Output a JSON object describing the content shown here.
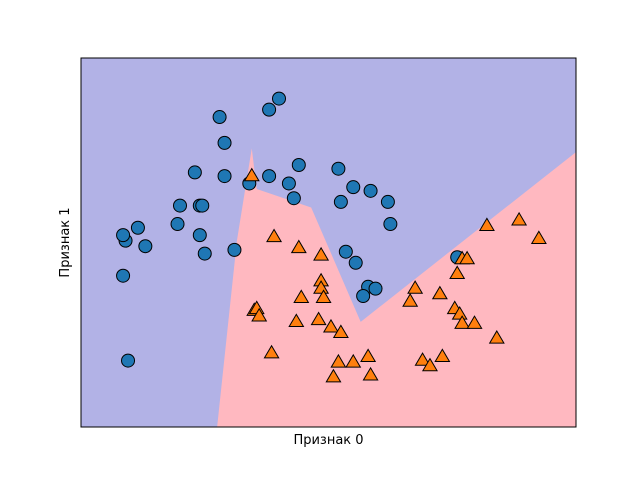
{
  "chart_data": {
    "type": "scatter",
    "xlabel": "Признак 0",
    "ylabel": "Признак 1",
    "xlim": [
      0,
      100
    ],
    "ylim": [
      0,
      100
    ],
    "xticks_visible": false,
    "yticks_visible": false,
    "grid": false,
    "regions": [
      {
        "class": 0,
        "color": "#b2b2e6",
        "fill": "background"
      },
      {
        "class": 1,
        "color": "#ffb8c0",
        "polygon": [
          [
            27.5,
            0
          ],
          [
            31.5,
            50.5
          ],
          [
            34.5,
            75.5
          ],
          [
            35.5,
            64.5
          ],
          [
            46.5,
            59.5
          ],
          [
            56.5,
            28.5
          ],
          [
            100,
            74.5
          ],
          [
            100,
            0
          ]
        ]
      }
    ],
    "series": [
      {
        "class": 0,
        "marker": "circle",
        "color": "#1f77b4",
        "edgecolor": "#000000",
        "points": [
          [
            28,
            84
          ],
          [
            38,
            86
          ],
          [
            40,
            89
          ],
          [
            29,
            77
          ],
          [
            23,
            69
          ],
          [
            29,
            68
          ],
          [
            38,
            68
          ],
          [
            34,
            66
          ],
          [
            44,
            71
          ],
          [
            42,
            66
          ],
          [
            43,
            62
          ],
          [
            52,
            70
          ],
          [
            52.5,
            61
          ],
          [
            55,
            65
          ],
          [
            58.5,
            64
          ],
          [
            62,
            61
          ],
          [
            62.5,
            55
          ],
          [
            20,
            60
          ],
          [
            24,
            60
          ],
          [
            24.5,
            60
          ],
          [
            19.5,
            55
          ],
          [
            24,
            52
          ],
          [
            11.5,
            54
          ],
          [
            13,
            49
          ],
          [
            9,
            50.5
          ],
          [
            8.5,
            52
          ],
          [
            31,
            48
          ],
          [
            25,
            47
          ],
          [
            53.5,
            47.5
          ],
          [
            55.5,
            44.5
          ],
          [
            8.5,
            41
          ],
          [
            9.5,
            18
          ],
          [
            58,
            38
          ],
          [
            59.5,
            37.5
          ],
          [
            57,
            35.5
          ],
          [
            76,
            46
          ]
        ]
      },
      {
        "class": 1,
        "marker": "triangle",
        "color": "#ff7f0e",
        "edgecolor": "#000000",
        "points": [
          [
            34.5,
            68
          ],
          [
            39,
            51.5
          ],
          [
            44,
            48.5
          ],
          [
            48.5,
            46.5
          ],
          [
            48.5,
            39.5
          ],
          [
            48.5,
            37.5
          ],
          [
            49,
            35
          ],
          [
            44.5,
            35
          ],
          [
            35,
            31.5
          ],
          [
            35.5,
            32
          ],
          [
            36,
            30
          ],
          [
            43.5,
            28.5
          ],
          [
            48,
            29
          ],
          [
            50.5,
            27
          ],
          [
            52.5,
            25.5
          ],
          [
            38.5,
            20
          ],
          [
            52,
            17.5
          ],
          [
            55,
            17.5
          ],
          [
            58,
            19
          ],
          [
            51,
            13.5
          ],
          [
            58.5,
            14
          ],
          [
            66.5,
            34
          ],
          [
            67.5,
            37.5
          ],
          [
            72.5,
            36
          ],
          [
            75.5,
            32
          ],
          [
            76.5,
            30.5
          ],
          [
            77,
            28
          ],
          [
            79.5,
            28
          ],
          [
            73,
            19
          ],
          [
            69,
            18
          ],
          [
            70.5,
            16.5
          ],
          [
            76,
            41.5
          ],
          [
            77,
            45.5
          ],
          [
            78,
            45.5
          ],
          [
            82,
            54.5
          ],
          [
            88.5,
            56
          ],
          [
            84,
            24
          ],
          [
            92.5,
            51
          ]
        ]
      }
    ]
  }
}
